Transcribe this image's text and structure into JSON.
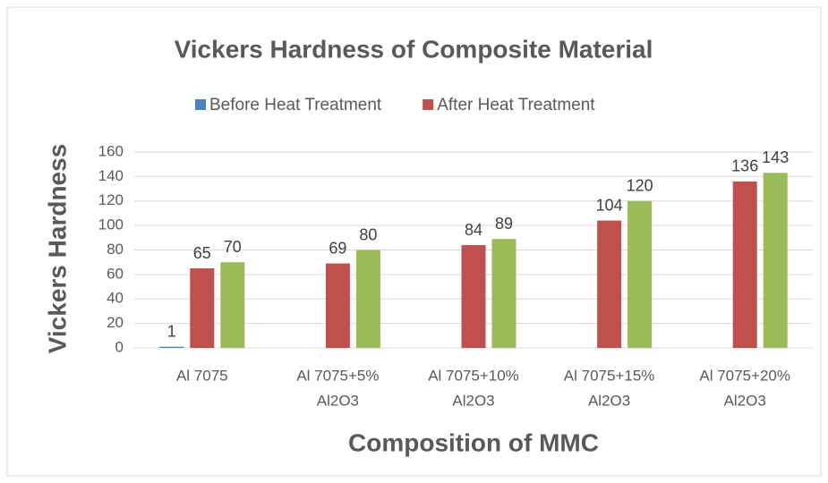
{
  "chart_data": {
    "type": "bar",
    "title": "Vickers Hardness of Composite Material",
    "y_label": "Vickers Hardness",
    "x_label": "Composition of MMC",
    "categories": [
      [
        "Al 7075"
      ],
      [
        "Al 7075+5%",
        "Al2O3"
      ],
      [
        "Al 7075+10%",
        "Al2O3"
      ],
      [
        "Al 7075+15%",
        "Al2O3"
      ],
      [
        "Al 7075+20%",
        "Al2O3"
      ]
    ],
    "series": [
      {
        "name": "Before Heat Treatment",
        "color": "#4f81bd",
        "values": [
          1,
          null,
          null,
          null,
          null
        ]
      },
      {
        "name": "After Heat Treatment",
        "color": "#c0504d",
        "values": [
          65,
          69,
          84,
          104,
          136
        ]
      },
      {
        "color": "#9bbb59",
        "values": [
          70,
          80,
          89,
          120,
          143
        ]
      }
    ],
    "ylim": [
      0,
      160
    ],
    "yticks": [
      0,
      20,
      40,
      60,
      80,
      100,
      120,
      140,
      160
    ],
    "grid": true,
    "legend": "top"
  }
}
